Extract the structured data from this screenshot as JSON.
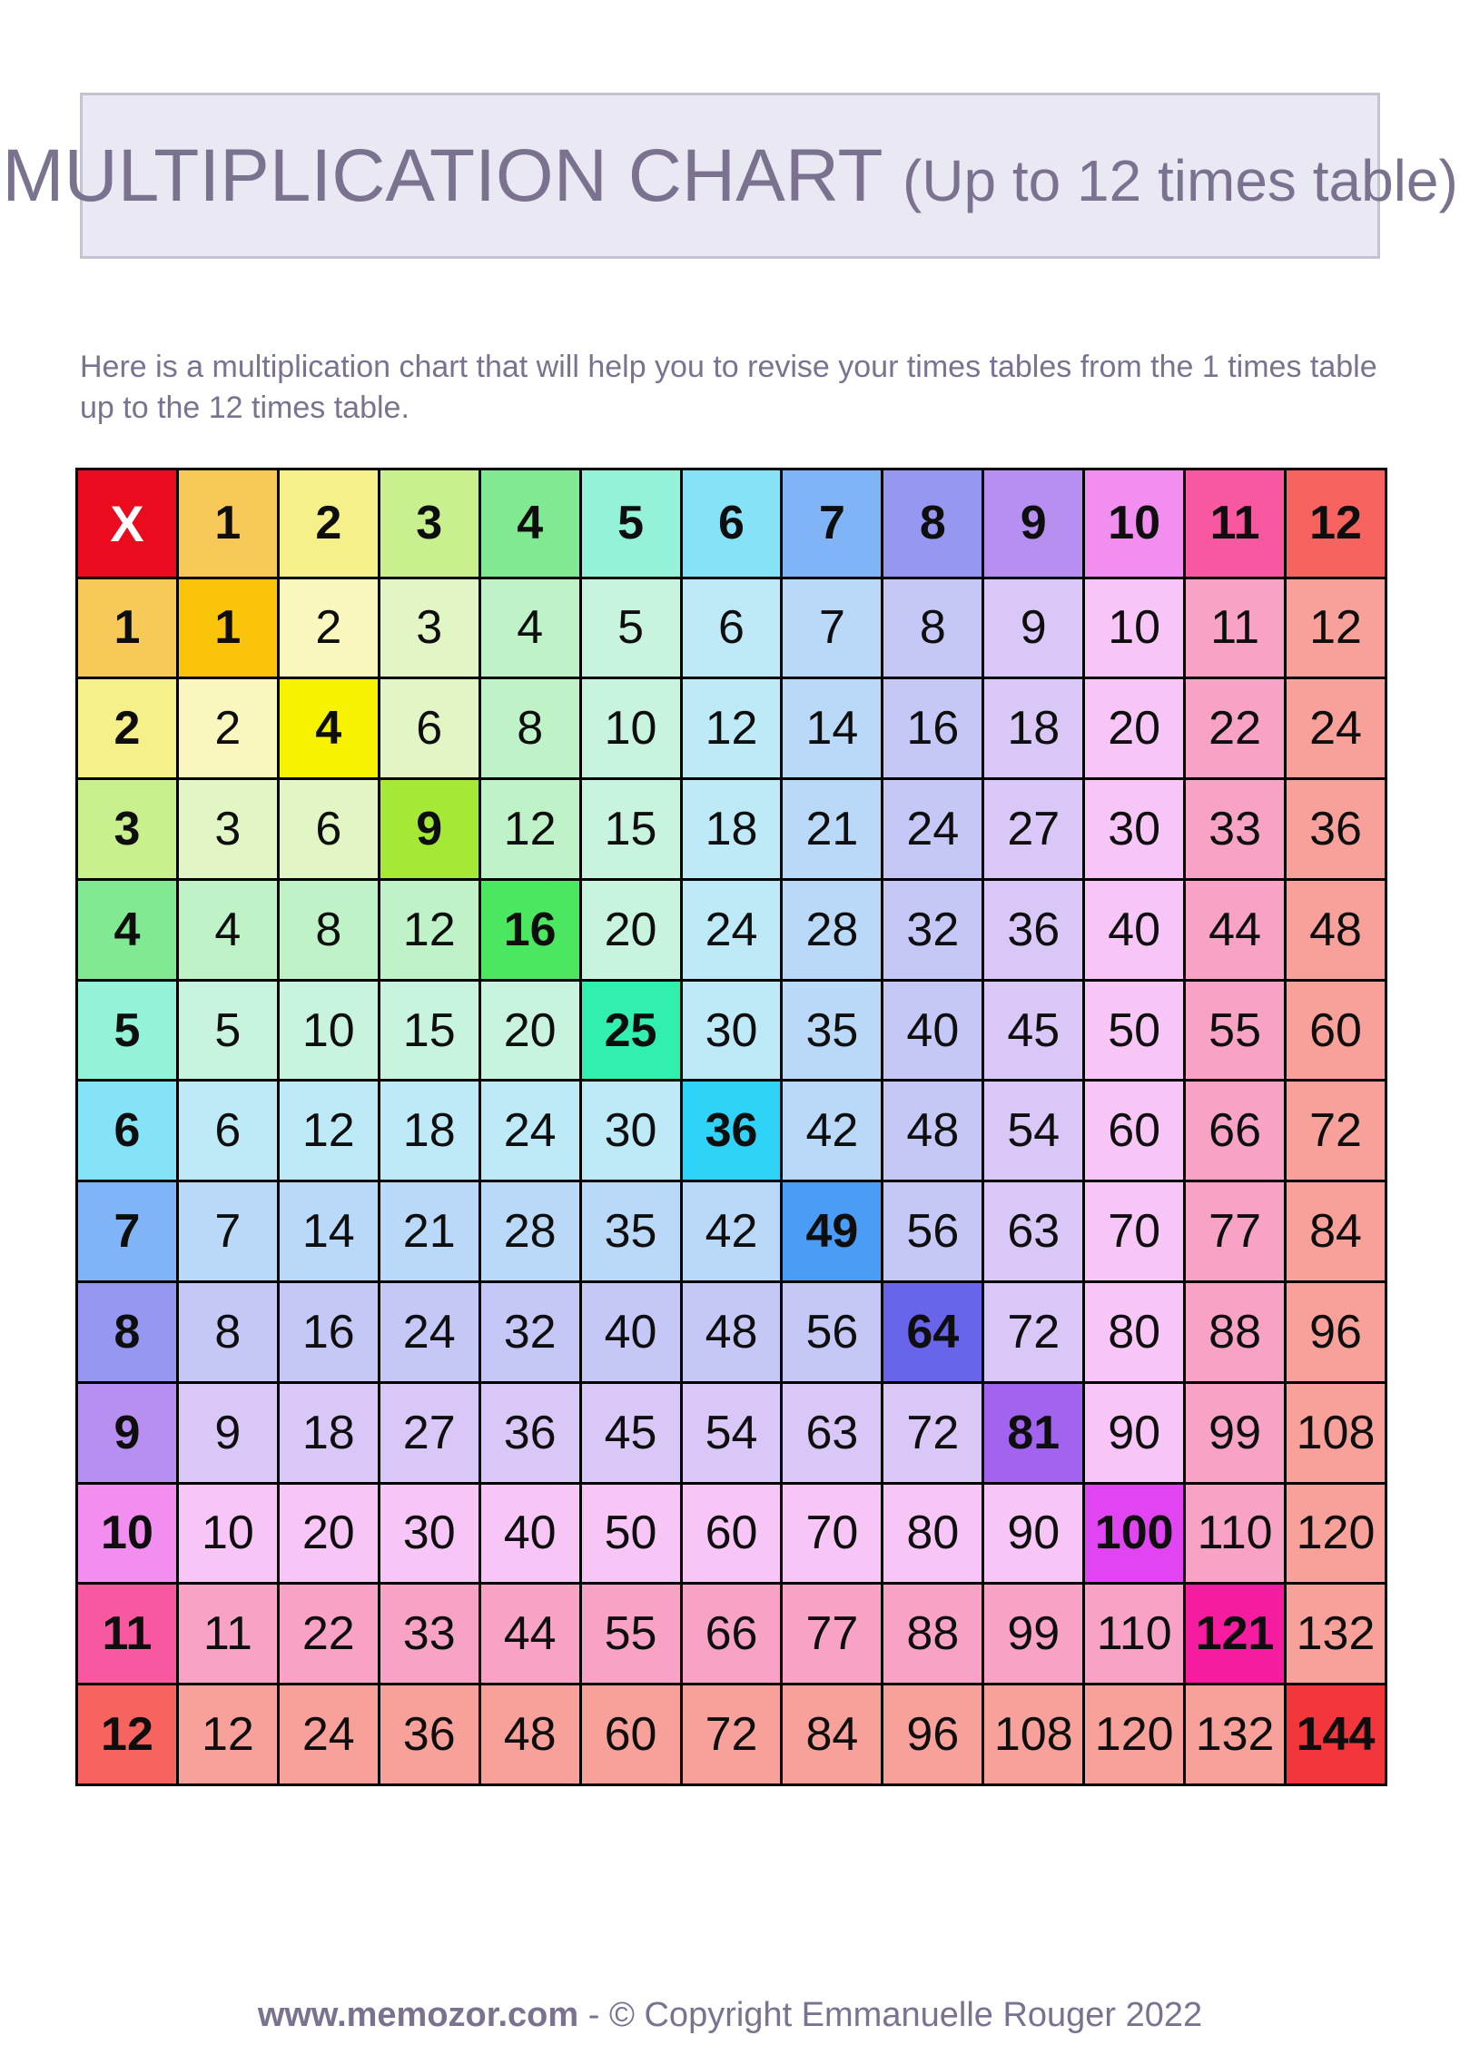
{
  "header": {
    "title_main": "MULTIPLICATION CHART",
    "title_sub": "(Up to 12 times table)"
  },
  "intro": {
    "text": "Here is a multiplication chart that will help you to revise your times tables from the 1 times table up to the 12 times table."
  },
  "footer": {
    "site": "www.memozor.com",
    "separator": " - ",
    "copyright": "© Copyright Emmanuelle Rouger 2022"
  },
  "chart_data": {
    "type": "table",
    "title": "MULTIPLICATION CHART (Up to 12 times table)",
    "corner_label": "X",
    "column_headers": [
      1,
      2,
      3,
      4,
      5,
      6,
      7,
      8,
      9,
      10,
      11,
      12
    ],
    "row_headers": [
      1,
      2,
      3,
      4,
      5,
      6,
      7,
      8,
      9,
      10,
      11,
      12
    ],
    "rows": [
      [
        1,
        2,
        3,
        4,
        5,
        6,
        7,
        8,
        9,
        10,
        11,
        12
      ],
      [
        2,
        4,
        6,
        8,
        10,
        12,
        14,
        16,
        18,
        20,
        22,
        24
      ],
      [
        3,
        6,
        9,
        12,
        15,
        18,
        21,
        24,
        27,
        30,
        33,
        36
      ],
      [
        4,
        8,
        12,
        16,
        20,
        24,
        28,
        32,
        36,
        40,
        44,
        48
      ],
      [
        5,
        10,
        15,
        20,
        25,
        30,
        35,
        40,
        45,
        50,
        55,
        60
      ],
      [
        6,
        12,
        18,
        24,
        30,
        36,
        42,
        48,
        54,
        60,
        66,
        72
      ],
      [
        7,
        14,
        21,
        28,
        35,
        42,
        49,
        56,
        63,
        70,
        77,
        84
      ],
      [
        8,
        16,
        24,
        32,
        40,
        48,
        56,
        64,
        72,
        80,
        88,
        96
      ],
      [
        9,
        18,
        27,
        36,
        45,
        54,
        63,
        72,
        81,
        90,
        99,
        108
      ],
      [
        10,
        20,
        30,
        40,
        50,
        60,
        70,
        80,
        90,
        100,
        110,
        120
      ],
      [
        11,
        22,
        33,
        44,
        55,
        66,
        77,
        88,
        99,
        110,
        121,
        132
      ],
      [
        12,
        24,
        36,
        48,
        60,
        72,
        84,
        96,
        108,
        120,
        132,
        144
      ]
    ],
    "highlight_rule": "header row/column use strong colors; diagonal squares use vivid colors; other cells use pastel tint of max(row,col)"
  },
  "colors": {
    "title_text": "#7B7290",
    "title_card_bg": "#EAE9F3",
    "title_card_border": "#C4C3D2",
    "grid_border": "#000000",
    "number_text": "#0E0E0E",
    "corner_bg": "#EA0B1E",
    "corner_text": "#FFFFFF",
    "header_bg": [
      "#F7C959",
      "#F5F08A",
      "#C9F08F",
      "#80E992",
      "#93F2D8",
      "#85E2F7",
      "#81B4F7",
      "#9597F0",
      "#B68FF0",
      "#F18EEF",
      "#F7589F",
      "#F7635F"
    ],
    "diagonal_bg": [
      "#F9C40A",
      "#F6F200",
      "#A5E936",
      "#4CE761",
      "#31EFAF",
      "#2ED3F7",
      "#4A9CF5",
      "#6865EA",
      "#A263EF",
      "#E145F1",
      "#F51C9F",
      "#F2363B"
    ],
    "tint_bg": [
      null,
      "#FAF7BE",
      "#E2F5C4",
      "#BFF2C7",
      "#C8F4DF",
      "#BEEAF8",
      "#BAD8F8",
      "#C5C7F6",
      "#D8C7F7",
      "#F8C5F7",
      "#F8A3C6",
      "#F8A19B"
    ]
  }
}
